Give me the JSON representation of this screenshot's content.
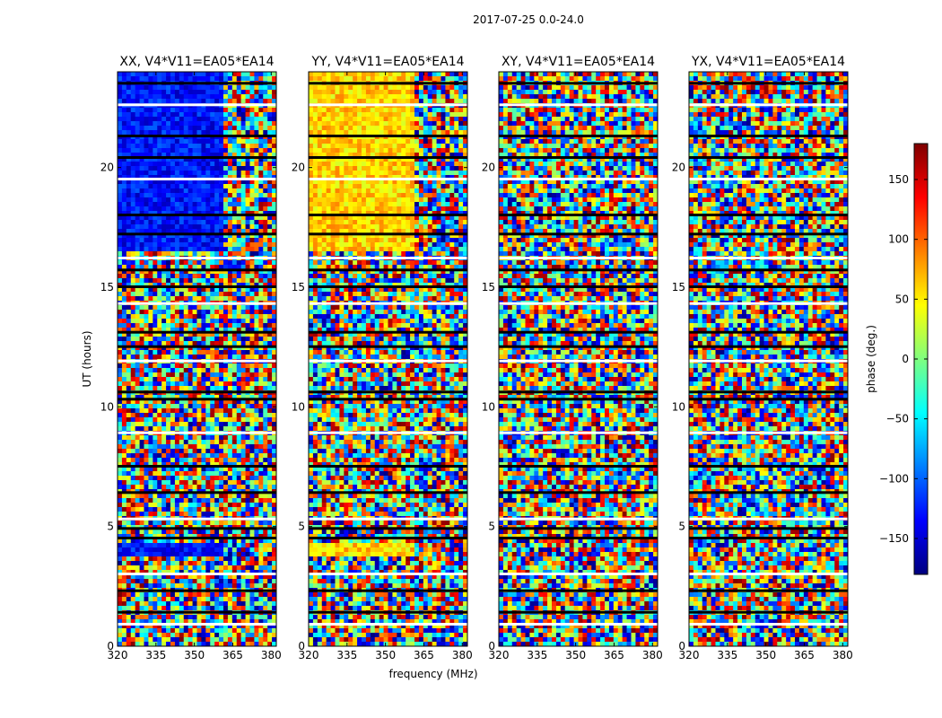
{
  "chart_data": {
    "type": "heatmap",
    "suptitle": "2017-07-25 0.0-24.0",
    "xlabel": "frequency (MHz)",
    "ylabel": "UT (hours)",
    "xlim": [
      320,
      382
    ],
    "ylim": [
      0,
      24
    ],
    "xticks": [
      320,
      335,
      350,
      365,
      380
    ],
    "yticks": [
      0,
      5,
      10,
      15,
      20
    ],
    "colorbar": {
      "label": "phase (deg.)",
      "range": [
        -180,
        180
      ],
      "ticks": [
        -150,
        -100,
        -50,
        0,
        50,
        100,
        150
      ],
      "ticklabels": [
        "−150",
        "−100",
        "−50",
        "0",
        "50",
        "100",
        "150"
      ],
      "colormap": "jet",
      "colors": [
        "#00007f",
        "#0000ff",
        "#007fff",
        "#00ffff",
        "#7fff7f",
        "#ffff00",
        "#ff7f00",
        "#ff0000",
        "#7f0000"
      ]
    },
    "panels": [
      {
        "title": "XX, V4*V11=EA05*EA14",
        "coherent_phase_deg": -130,
        "coherent_until_MHz": 362,
        "coherent_hours": [
          [
            16.5,
            24
          ],
          [
            3.7,
            4.3
          ]
        ]
      },
      {
        "title": "YY, V4*V11=EA05*EA14",
        "coherent_phase_deg": 60,
        "coherent_until_MHz": 362,
        "coherent_hours": [
          [
            16.5,
            24
          ],
          [
            3.7,
            4.3
          ]
        ]
      },
      {
        "title": "XY, V4*V11=EA05*EA14",
        "coherent_phase_deg": null,
        "coherent_until_MHz": null,
        "coherent_hours": []
      },
      {
        "title": "YX, V4*V11=EA05*EA14",
        "coherent_phase_deg": null,
        "coherent_until_MHz": null,
        "coherent_hours": []
      }
    ],
    "blank_or_flagged_hours": [
      0.9,
      1.4,
      2.3,
      3.0,
      4.5,
      4.9,
      5.3,
      6.4,
      7.5,
      8.9,
      10.3,
      10.6,
      11.9,
      12.5,
      13.1,
      14.3,
      15.0,
      15.7,
      16.2,
      17.2,
      18.0,
      19.5,
      20.4,
      21.3,
      22.6,
      23.5
    ]
  }
}
